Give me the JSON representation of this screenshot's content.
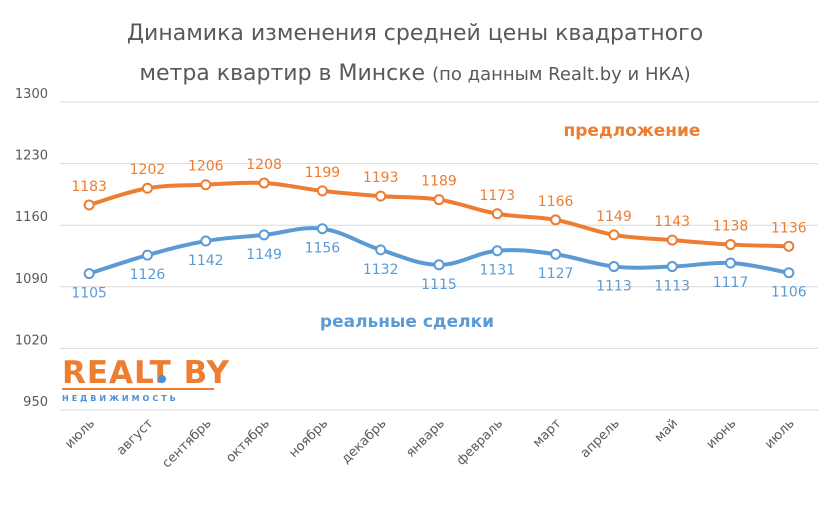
{
  "title": {
    "line1": "Динамика изменения средней цены квадратного",
    "line2_main": "метра квартир в Минске ",
    "line2_paren": "(по данным Realt.by и НКА)"
  },
  "logo": {
    "main_text": "REALT BY",
    "sub_text": "НЕДВИЖИМОСТЬ"
  },
  "colors": {
    "offer": "#ed7d31",
    "deals": "#5b9bd5",
    "grid": "#d9d9d9",
    "text": "#595959"
  },
  "chart_data": {
    "type": "line",
    "categories": [
      "июль",
      "август",
      "сентябрь",
      "октябрь",
      "ноябрь",
      "декабрь",
      "январь",
      "февраль",
      "март",
      "апрель",
      "май",
      "июнь",
      "июль"
    ],
    "ylim": [
      950,
      1300
    ],
    "yticks": [
      950,
      1020,
      1090,
      1160,
      1230,
      1300
    ],
    "grid": true,
    "series": [
      {
        "name": "предложение",
        "values": [
          1183,
          1202,
          1206,
          1208,
          1199,
          1193,
          1189,
          1173,
          1166,
          1149,
          1143,
          1138,
          1136
        ]
      },
      {
        "name": "реальные сделки",
        "values": [
          1105,
          1126,
          1142,
          1149,
          1156,
          1132,
          1115,
          1131,
          1127,
          1113,
          1113,
          1117,
          1106
        ]
      }
    ]
  }
}
